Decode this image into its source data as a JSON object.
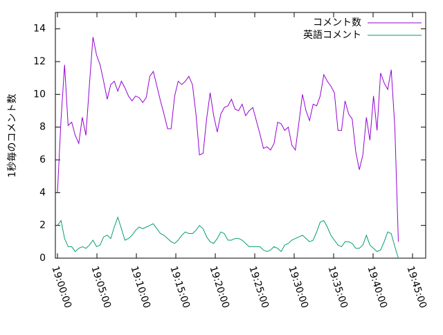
{
  "chart_data": {
    "type": "line",
    "y_label": "1秒毎のコメント数",
    "x": [
      "19:00:00",
      "19:00:27",
      "19:00:54",
      "19:01:21",
      "19:01:48",
      "19:02:15",
      "19:02:42",
      "19:03:09",
      "19:03:36",
      "19:04:03",
      "19:04:30",
      "19:04:57",
      "19:05:24",
      "19:05:51",
      "19:06:18",
      "19:06:45",
      "19:07:12",
      "19:07:39",
      "19:08:06",
      "19:08:33",
      "19:09:00",
      "19:09:27",
      "19:09:54",
      "19:10:21",
      "19:10:48",
      "19:11:15",
      "19:11:42",
      "19:12:09",
      "19:12:36",
      "19:13:03",
      "19:13:30",
      "19:13:57",
      "19:14:24",
      "19:14:51",
      "19:15:18",
      "19:15:45",
      "19:16:12",
      "19:16:39",
      "19:17:06",
      "19:17:33",
      "19:18:00",
      "19:18:27",
      "19:18:54",
      "19:19:21",
      "19:19:48",
      "19:20:15",
      "19:20:42",
      "19:21:09",
      "19:21:36",
      "19:22:03",
      "19:22:30",
      "19:22:57",
      "19:23:24",
      "19:23:51",
      "19:24:18",
      "19:24:45",
      "19:25:12",
      "19:25:39",
      "19:26:06",
      "19:26:33",
      "19:27:00",
      "19:27:27",
      "19:27:54",
      "19:28:21",
      "19:28:48",
      "19:29:15",
      "19:29:42",
      "19:30:09",
      "19:30:36",
      "19:31:03",
      "19:31:30",
      "19:31:57",
      "19:32:24",
      "19:32:51",
      "19:33:18",
      "19:33:45",
      "19:34:12",
      "19:34:39",
      "19:35:06",
      "19:35:33",
      "19:36:00",
      "19:36:27",
      "19:36:54",
      "19:37:21",
      "19:37:48",
      "19:38:15",
      "19:38:42",
      "19:39:09",
      "19:39:36",
      "19:40:03",
      "19:40:30",
      "19:40:57",
      "19:41:24",
      "19:41:51",
      "19:42:18",
      "19:42:45",
      "19:43:12"
    ],
    "series": [
      {
        "name": "コメント数",
        "color": "#9400d3",
        "values": [
          4.0,
          8.5,
          11.8,
          8.1,
          8.3,
          7.5,
          7.0,
          8.6,
          7.5,
          10.6,
          13.5,
          12.4,
          11.8,
          10.8,
          9.7,
          10.6,
          10.8,
          10.2,
          10.8,
          10.4,
          9.9,
          9.6,
          9.9,
          9.8,
          9.5,
          9.8,
          11.1,
          11.4,
          10.5,
          9.6,
          8.8,
          7.9,
          7.9,
          9.9,
          10.8,
          10.6,
          10.8,
          11.1,
          10.6,
          8.8,
          6.3,
          6.4,
          8.5,
          10.1,
          8.7,
          7.7,
          8.8,
          9.2,
          9.3,
          9.7,
          9.1,
          9.0,
          9.4,
          8.7,
          9.0,
          9.2,
          8.4,
          7.6,
          6.7,
          6.8,
          6.6,
          7.0,
          8.3,
          8.2,
          7.8,
          8.0,
          6.9,
          6.6,
          8.3,
          10.0,
          9.0,
          8.4,
          9.4,
          9.3,
          9.9,
          11.2,
          10.8,
          10.5,
          10.1,
          7.8,
          7.8,
          9.6,
          8.8,
          8.5,
          6.5,
          5.4,
          6.3,
          8.6,
          7.2,
          9.9,
          7.8,
          11.3,
          10.7,
          10.3,
          11.5,
          8.0,
          1.0
        ]
      },
      {
        "name": "英語コメント",
        "color": "#009e73",
        "values": [
          2.0,
          2.3,
          1.2,
          0.7,
          0.7,
          0.4,
          0.6,
          0.7,
          0.6,
          0.8,
          1.1,
          0.7,
          0.8,
          1.3,
          1.4,
          1.2,
          1.9,
          2.5,
          1.8,
          1.1,
          1.2,
          1.4,
          1.7,
          1.9,
          1.8,
          1.9,
          2.0,
          2.1,
          1.8,
          1.5,
          1.4,
          1.2,
          1.0,
          0.9,
          1.1,
          1.4,
          1.6,
          1.5,
          1.5,
          1.7,
          2.0,
          1.8,
          1.3,
          1.0,
          0.9,
          1.2,
          1.6,
          1.5,
          1.1,
          1.1,
          1.2,
          1.2,
          1.1,
          0.9,
          0.7,
          0.7,
          0.7,
          0.7,
          0.5,
          0.4,
          0.5,
          0.7,
          0.6,
          0.4,
          0.8,
          0.9,
          1.1,
          1.2,
          1.3,
          1.4,
          1.2,
          1.0,
          1.1,
          1.6,
          2.2,
          2.3,
          1.9,
          1.4,
          1.1,
          0.8,
          0.7,
          1.0,
          1.0,
          0.9,
          0.6,
          0.6,
          0.8,
          1.4,
          0.8,
          0.6,
          0.4,
          0.5,
          1.0,
          1.6,
          1.5,
          0.7,
          0.0
        ]
      }
    ],
    "xlim": [
      "18:59:44",
      "19:46:40"
    ],
    "xticks": [
      "19:00:00",
      "19:05:00",
      "19:10:00",
      "19:15:00",
      "19:20:00",
      "19:25:00",
      "19:30:00",
      "19:35:00",
      "19:40:00",
      "19:45:00"
    ],
    "ylim": [
      0,
      15
    ],
    "yticks": [
      0,
      2,
      4,
      6,
      8,
      10,
      12,
      14
    ],
    "legend": "top-right"
  }
}
